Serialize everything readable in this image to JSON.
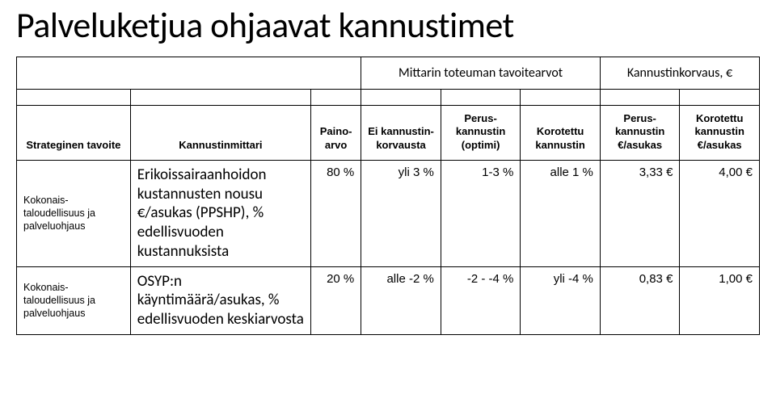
{
  "title": "Palveluketjua ohjaavat kannustimet",
  "super_headers": {
    "left_blank": "",
    "mid": "Mittarin toteuman tavoitearvot",
    "right": "Kannustinkorvaus, €"
  },
  "headers": {
    "c1": "Strateginen tavoite",
    "c2": "Kannustinmittari",
    "c3": "Paino-arvo",
    "c4": "Ei kannustin-korvausta",
    "c5": "Perus-kannustin (optimi)",
    "c6": "Korotettu kannustin",
    "c7": "Perus-kannustin €/asukas",
    "c8": "Korotettu kannustin €/asukas"
  },
  "rows": [
    {
      "tavoite": "Kokonais-taloudellisuus ja palveluohjaus",
      "mittari": "Erikoissairaanhoidon kustannusten nousu €/asukas (PPSHP), % edellisvuoden kustannuksista",
      "paino": "80 %",
      "ei": "yli 3 %",
      "perus": "1-3 %",
      "korotettu": "alle 1 %",
      "perus_eur": "3,33 €",
      "korotettu_eur": "4,00 €"
    },
    {
      "tavoite": "Kokonais-taloudellisuus ja palveluohjaus",
      "mittari": "OSYP:n käyntimäärä/asukas, % edellisvuoden keskiarvosta",
      "paino": "20 %",
      "ei": "alle -2 %",
      "perus": "-2 - -4 %",
      "korotettu": "yli -4 %",
      "perus_eur": "0,83 €",
      "korotettu_eur": "1,00 €"
    }
  ]
}
